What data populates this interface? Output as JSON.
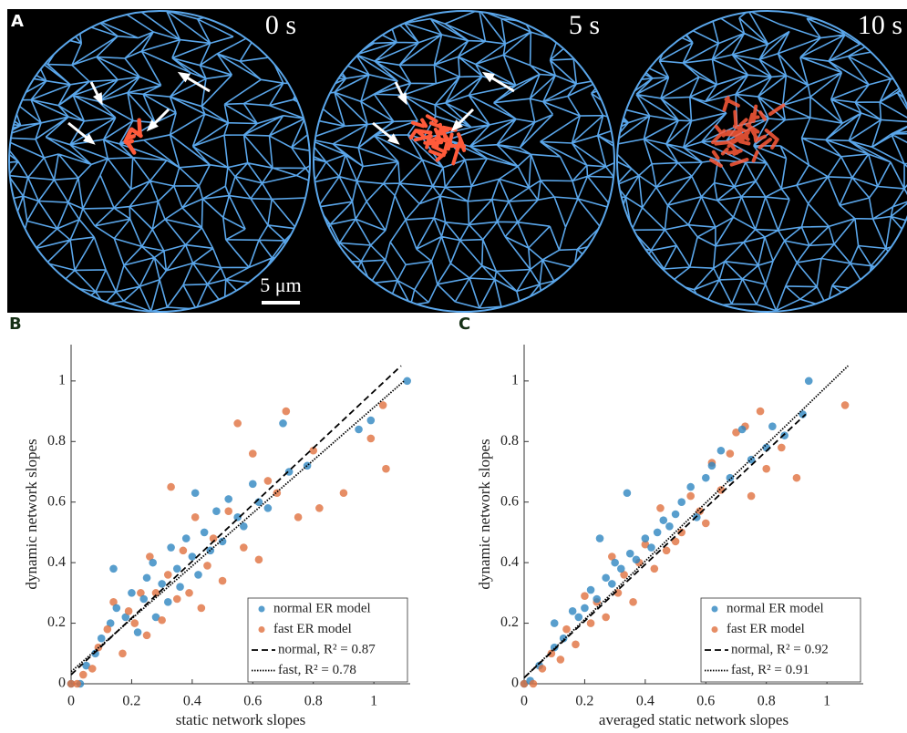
{
  "panel_a": {
    "label": "A",
    "frames": [
      "0 s",
      "5 s",
      "10 s"
    ],
    "scale_bar": "5 μm"
  },
  "chart_data": [
    {
      "type": "scatter",
      "panel_label": "B",
      "xlabel": "static network slopes",
      "ylabel": "dynamic network slopes",
      "xlim": [
        0,
        1.12
      ],
      "ylim": [
        0,
        1.12
      ],
      "xticks": [
        0,
        0.2,
        0.4,
        0.6,
        0.8,
        1
      ],
      "yticks": [
        0,
        0.2,
        0.4,
        0.6,
        0.8,
        1
      ],
      "series": [
        {
          "name": "normal ER model",
          "color": "#2e86c1",
          "x": [
            0,
            0.03,
            0.05,
            0.08,
            0.1,
            0.13,
            0.14,
            0.15,
            0.18,
            0.2,
            0.22,
            0.24,
            0.25,
            0.27,
            0.28,
            0.3,
            0.32,
            0.33,
            0.35,
            0.36,
            0.38,
            0.4,
            0.41,
            0.42,
            0.44,
            0.46,
            0.48,
            0.5,
            0.52,
            0.55,
            0.57,
            0.6,
            0.62,
            0.65,
            0.7,
            0.72,
            0.78,
            0.95,
            0.99,
            1.11
          ],
          "values": [
            0,
            0,
            0.06,
            0.1,
            0.15,
            0.2,
            0.38,
            0.25,
            0.22,
            0.3,
            0.17,
            0.28,
            0.35,
            0.4,
            0.22,
            0.33,
            0.27,
            0.45,
            0.38,
            0.32,
            0.48,
            0.42,
            0.63,
            0.36,
            0.5,
            0.44,
            0.57,
            0.47,
            0.61,
            0.55,
            0.52,
            0.66,
            0.6,
            0.58,
            0.86,
            0.7,
            0.72,
            0.84,
            0.87,
            1.0
          ]
        },
        {
          "name": "fast ER model",
          "color": "#e0703f",
          "x": [
            0,
            0.02,
            0.04,
            0.07,
            0.09,
            0.12,
            0.14,
            0.17,
            0.19,
            0.21,
            0.23,
            0.25,
            0.26,
            0.28,
            0.3,
            0.32,
            0.33,
            0.35,
            0.37,
            0.39,
            0.41,
            0.43,
            0.45,
            0.47,
            0.5,
            0.52,
            0.55,
            0.57,
            0.6,
            0.62,
            0.65,
            0.68,
            0.71,
            0.75,
            0.8,
            0.82,
            0.9,
            0.99,
            1.03,
            1.04
          ],
          "values": [
            0,
            0,
            0.03,
            0.05,
            0.12,
            0.18,
            0.27,
            0.1,
            0.24,
            0.2,
            0.3,
            0.16,
            0.42,
            0.3,
            0.21,
            0.36,
            0.65,
            0.28,
            0.44,
            0.3,
            0.55,
            0.25,
            0.39,
            0.48,
            0.34,
            0.57,
            0.86,
            0.45,
            0.76,
            0.41,
            0.67,
            0.63,
            0.9,
            0.55,
            0.77,
            0.58,
            0.63,
            0.81,
            0.92,
            0.71
          ]
        }
      ],
      "fits": [
        {
          "name": "normal, R² = 0.87",
          "style": "dashed",
          "color": "#000000",
          "x": [
            0,
            1.09
          ],
          "values": [
            0.03,
            1.05
          ]
        },
        {
          "name": "fast, R² = 0.78",
          "style": "dotted",
          "color": "#000000",
          "x": [
            0,
            1.1
          ],
          "values": [
            0.04,
            1.0
          ]
        }
      ]
    },
    {
      "type": "scatter",
      "panel_label": "C",
      "xlabel": "averaged static network slopes",
      "ylabel": "dynamic network slopes",
      "xlim": [
        0,
        1.12
      ],
      "ylim": [
        0,
        1.12
      ],
      "xticks": [
        0,
        0.2,
        0.4,
        0.6,
        0.8,
        1
      ],
      "yticks": [
        0,
        0.2,
        0.4,
        0.6,
        0.8,
        1
      ],
      "series": [
        {
          "name": "normal ER model",
          "color": "#2e86c1",
          "x": [
            0,
            0.02,
            0.05,
            0.1,
            0.1,
            0.13,
            0.16,
            0.18,
            0.2,
            0.22,
            0.24,
            0.25,
            0.27,
            0.29,
            0.3,
            0.32,
            0.34,
            0.35,
            0.37,
            0.4,
            0.42,
            0.44,
            0.46,
            0.48,
            0.5,
            0.52,
            0.55,
            0.57,
            0.6,
            0.62,
            0.65,
            0.68,
            0.72,
            0.75,
            0.8,
            0.82,
            0.86,
            0.92,
            0.94
          ],
          "values": [
            0,
            0.01,
            0.06,
            0.12,
            0.2,
            0.15,
            0.24,
            0.22,
            0.25,
            0.31,
            0.28,
            0.48,
            0.35,
            0.33,
            0.4,
            0.38,
            0.63,
            0.43,
            0.41,
            0.48,
            0.45,
            0.5,
            0.54,
            0.52,
            0.56,
            0.6,
            0.65,
            0.55,
            0.68,
            0.72,
            0.77,
            0.68,
            0.84,
            0.74,
            0.78,
            0.85,
            0.82,
            0.89,
            1.0
          ]
        },
        {
          "name": "fast ER model",
          "color": "#e0703f",
          "x": [
            0,
            0.03,
            0.06,
            0.09,
            0.12,
            0.14,
            0.17,
            0.2,
            0.22,
            0.24,
            0.27,
            0.29,
            0.31,
            0.33,
            0.36,
            0.38,
            0.4,
            0.43,
            0.45,
            0.47,
            0.5,
            0.52,
            0.55,
            0.58,
            0.6,
            0.62,
            0.65,
            0.68,
            0.7,
            0.73,
            0.75,
            0.78,
            0.8,
            0.85,
            0.9,
            1.06
          ],
          "values": [
            0,
            0,
            0.05,
            0.1,
            0.08,
            0.18,
            0.13,
            0.29,
            0.2,
            0.27,
            0.22,
            0.42,
            0.3,
            0.36,
            0.27,
            0.4,
            0.46,
            0.38,
            0.58,
            0.44,
            0.47,
            0.5,
            0.62,
            0.57,
            0.53,
            0.73,
            0.64,
            0.76,
            0.83,
            0.85,
            0.62,
            0.9,
            0.71,
            0.78,
            0.68,
            0.92
          ]
        }
      ],
      "fits": [
        {
          "name": "normal, R² = 0.92",
          "style": "dashed",
          "color": "#000000",
          "x": [
            0,
            0.93
          ],
          "values": [
            0.02,
            0.89
          ]
        },
        {
          "name": "fast, R² = 0.91",
          "style": "dotted",
          "color": "#000000",
          "x": [
            0,
            1.07
          ],
          "values": [
            0.02,
            1.05
          ]
        }
      ]
    }
  ]
}
